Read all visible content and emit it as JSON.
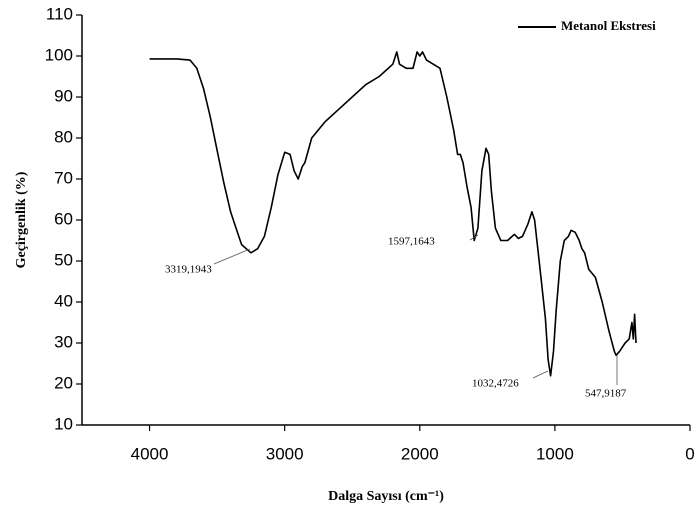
{
  "chart_data": {
    "type": "line",
    "xlabel": "Dalga Sayısı (cm⁻¹)",
    "ylabel": "Geçirgenlik (%)",
    "x": [
      4000,
      3800,
      3700,
      3650,
      3600,
      3550,
      3500,
      3450,
      3400,
      3350,
      3319,
      3250,
      3200,
      3150,
      3100,
      3050,
      3000,
      2960,
      2930,
      2900,
      2870,
      2850,
      2800,
      2700,
      2600,
      2500,
      2400,
      2300,
      2200,
      2170,
      2150,
      2100,
      2050,
      2020,
      2000,
      1980,
      1950,
      1900,
      1850,
      1800,
      1750,
      1720,
      1700,
      1680,
      1650,
      1620,
      1597,
      1570,
      1540,
      1510,
      1490,
      1470,
      1440,
      1400,
      1350,
      1300,
      1270,
      1240,
      1200,
      1170,
      1150,
      1120,
      1100,
      1070,
      1050,
      1032,
      1010,
      990,
      960,
      930,
      900,
      880,
      850,
      820,
      800,
      780,
      750,
      700,
      650,
      600,
      560,
      547,
      520,
      480,
      450,
      430,
      420,
      410,
      400
    ],
    "series": [
      {
        "name": "Metanol Ekstresi",
        "color": "#000000",
        "values": [
          99.3,
          99.3,
          99,
          97,
          92,
          85,
          77,
          69,
          62,
          57,
          54,
          52,
          53,
          56,
          63,
          71,
          76.5,
          76,
          72,
          70,
          73,
          74,
          80,
          84,
          87,
          90,
          93,
          95,
          98,
          101,
          98,
          97,
          97,
          101,
          100,
          101,
          99,
          98,
          97,
          90,
          82,
          76,
          76,
          74,
          68,
          63,
          55,
          58,
          72,
          77.5,
          76,
          67,
          58,
          55,
          55,
          56.5,
          55.5,
          56,
          59,
          62,
          60,
          51,
          45,
          36,
          26,
          22,
          28,
          38,
          50,
          55,
          56,
          57.5,
          57,
          55,
          53,
          52,
          48,
          46,
          40,
          33,
          28,
          27,
          28,
          30,
          31,
          35,
          31,
          37,
          30
        ]
      }
    ],
    "xlim": [
      4500,
      0
    ],
    "ylim": [
      10,
      110
    ],
    "xticks": [
      4000,
      3000,
      2000,
      1000,
      0
    ],
    "yticks": [
      10,
      20,
      30,
      40,
      50,
      60,
      70,
      80,
      90,
      100,
      110
    ],
    "annotations": [
      "3319,1943",
      "1597,1643",
      "1032,4726",
      "547,9187"
    ],
    "legend": "upper right"
  }
}
